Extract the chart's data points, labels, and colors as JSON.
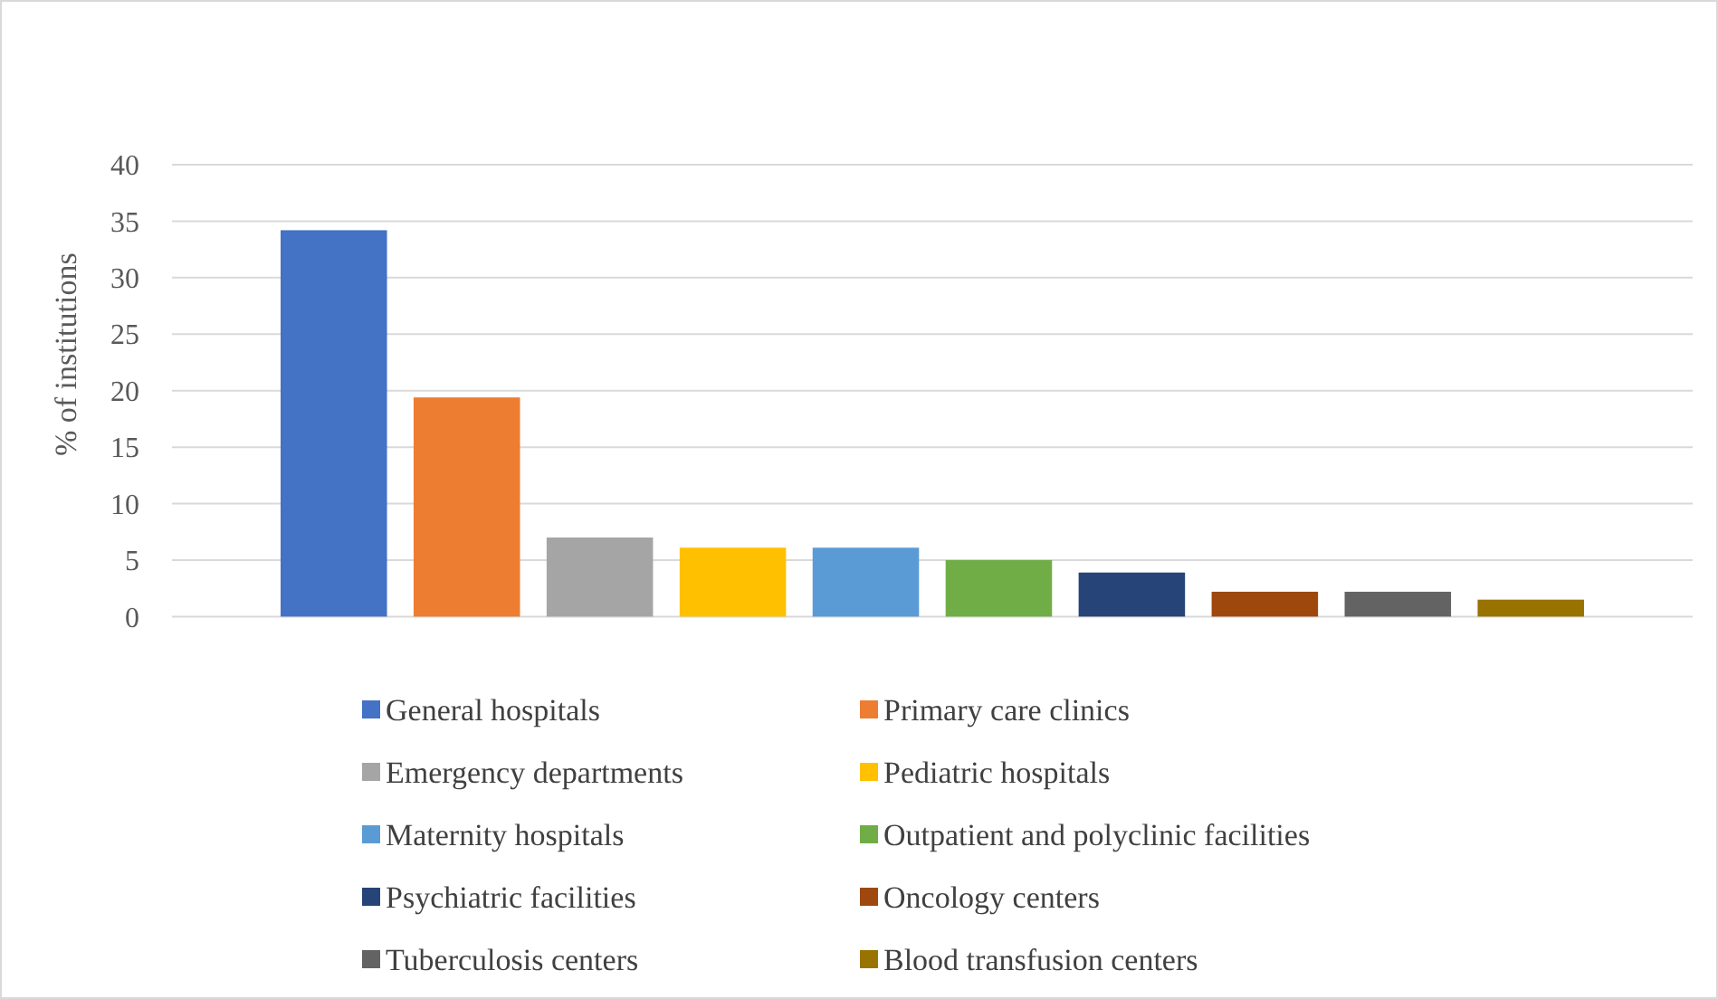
{
  "chart_data": {
    "type": "bar",
    "ylabel": "% of institutions",
    "categories": [
      null
    ],
    "series": [
      {
        "name": "General hospitals",
        "color": "#4472c4",
        "values": [
          34.2
        ]
      },
      {
        "name": "Primary care clinics",
        "color": "#ed7d31",
        "values": [
          19.4
        ]
      },
      {
        "name": "Emergency departments",
        "color": "#a5a5a5",
        "values": [
          7.0
        ]
      },
      {
        "name": "Pediatric hospitals",
        "color": "#ffc000",
        "values": [
          6.1
        ]
      },
      {
        "name": "Maternity hospitals",
        "color": "#5b9bd5",
        "values": [
          6.1
        ]
      },
      {
        "name": "Outpatient and polyclinic facilities",
        "color": "#70ad47",
        "values": [
          5.0
        ]
      },
      {
        "name": "Psychiatric facilities",
        "color": "#264478",
        "values": [
          3.9
        ]
      },
      {
        "name": "Oncology centers",
        "color": "#9e480e",
        "values": [
          2.2
        ]
      },
      {
        "name": "Tuberculosis centers",
        "color": "#636363",
        "values": [
          2.2
        ]
      },
      {
        "name": "Blood transfusion centers",
        "color": "#997300",
        "values": [
          1.5
        ]
      }
    ],
    "ylim": [
      0,
      40
    ],
    "yticks": [
      0,
      5,
      10,
      15,
      20,
      25,
      30,
      35,
      40
    ],
    "grid": "y",
    "legend": "bottom"
  }
}
